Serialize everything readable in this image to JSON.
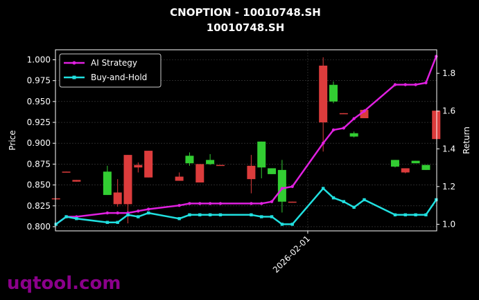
{
  "watermark": "uqtool.com",
  "colors": {
    "background": "#000000",
    "text": "#ffffff",
    "grid": "#444444",
    "up": "#32cd32",
    "down": "#dc3c3c",
    "ai_strategy": "#e020e0",
    "buy_and_hold": "#20e0e0",
    "watermark": "#8b008b"
  },
  "chart_data": {
    "type": "candlestick+line",
    "title": "CNOPTION - 10010748.SH",
    "subtitle": "10010748.SH",
    "ylabel_left": "Price",
    "ylabel_right": "Return",
    "ylim_left": [
      0.795,
      1.012
    ],
    "ylim_right": [
      0.965,
      1.925
    ],
    "yticks_left": [
      "0.800",
      "0.825",
      "0.850",
      "0.875",
      "0.900",
      "0.925",
      "0.950",
      "0.975",
      "1.000"
    ],
    "yticks_right": [
      "1.0",
      "1.2",
      "1.4",
      "1.6",
      "1.8"
    ],
    "x_tick_label": "2026-02-01",
    "x_tick_index": 24.5,
    "grid": true,
    "legend_position": "upper-left",
    "candles": [
      {
        "i": 0,
        "open": 0.834,
        "close": 0.833,
        "high": 0.834,
        "low": 0.833
      },
      {
        "i": 1,
        "open": 0.866,
        "close": 0.865,
        "high": 0.866,
        "low": 0.865
      },
      {
        "i": 2,
        "open": 0.856,
        "close": 0.854,
        "high": 0.856,
        "low": 0.854
      },
      {
        "i": 5,
        "open": 0.838,
        "close": 0.866,
        "high": 0.873,
        "low": 0.838
      },
      {
        "i": 6,
        "open": 0.841,
        "close": 0.827,
        "high": 0.857,
        "low": 0.824
      },
      {
        "i": 7,
        "open": 0.886,
        "close": 0.827,
        "high": 0.886,
        "low": 0.804
      },
      {
        "i": 8,
        "open": 0.874,
        "close": 0.871,
        "high": 0.877,
        "low": 0.865
      },
      {
        "i": 9,
        "open": 0.891,
        "close": 0.859,
        "high": 0.891,
        "low": 0.859
      },
      {
        "i": 12,
        "open": 0.86,
        "close": 0.855,
        "high": 0.865,
        "low": 0.855
      },
      {
        "i": 13,
        "open": 0.876,
        "close": 0.885,
        "high": 0.889,
        "low": 0.873
      },
      {
        "i": 14,
        "open": 0.875,
        "close": 0.853,
        "high": 0.875,
        "low": 0.853
      },
      {
        "i": 15,
        "open": 0.875,
        "close": 0.88,
        "high": 0.887,
        "low": 0.874
      },
      {
        "i": 16,
        "open": 0.874,
        "close": 0.873,
        "high": 0.874,
        "low": 0.873
      },
      {
        "i": 19,
        "open": 0.873,
        "close": 0.857,
        "high": 0.886,
        "low": 0.84
      },
      {
        "i": 20,
        "open": 0.871,
        "close": 0.902,
        "high": 0.902,
        "low": 0.858
      },
      {
        "i": 21,
        "open": 0.863,
        "close": 0.87,
        "high": 0.87,
        "low": 0.863
      },
      {
        "i": 22,
        "open": 0.83,
        "close": 0.868,
        "high": 0.88,
        "low": 0.817
      },
      {
        "i": 23,
        "open": 0.83,
        "close": 0.829,
        "high": 0.83,
        "low": 0.829
      },
      {
        "i": 26,
        "open": 0.993,
        "close": 0.925,
        "high": 1.003,
        "low": 0.89
      },
      {
        "i": 27,
        "open": 0.95,
        "close": 0.97,
        "high": 0.974,
        "low": 0.948
      },
      {
        "i": 28,
        "open": 0.936,
        "close": 0.935,
        "high": 0.936,
        "low": 0.935
      },
      {
        "i": 29,
        "open": 0.908,
        "close": 0.912,
        "high": 0.914,
        "low": 0.907
      },
      {
        "i": 30,
        "open": 0.94,
        "close": 0.93,
        "high": 0.941,
        "low": 0.93
      },
      {
        "i": 33,
        "open": 0.872,
        "close": 0.88,
        "high": 0.88,
        "low": 0.871
      },
      {
        "i": 34,
        "open": 0.87,
        "close": 0.865,
        "high": 0.87,
        "low": 0.864
      },
      {
        "i": 35,
        "open": 0.876,
        "close": 0.879,
        "high": 0.879,
        "low": 0.876
      },
      {
        "i": 36,
        "open": 0.868,
        "close": 0.874,
        "high": 0.874,
        "low": 0.868
      },
      {
        "i": 37,
        "open": 0.939,
        "close": 0.905,
        "high": 0.939,
        "low": 0.905
      }
    ],
    "series": [
      {
        "name": "AI Strategy",
        "points": [
          [
            0,
            1.0
          ],
          [
            1,
            1.04
          ],
          [
            2,
            1.04
          ],
          [
            5,
            1.06
          ],
          [
            6,
            1.06
          ],
          [
            7,
            1.06
          ],
          [
            8,
            1.07
          ],
          [
            9,
            1.08
          ],
          [
            12,
            1.1
          ],
          [
            13,
            1.11
          ],
          [
            14,
            1.11
          ],
          [
            15,
            1.11
          ],
          [
            16,
            1.11
          ],
          [
            19,
            1.11
          ],
          [
            20,
            1.11
          ],
          [
            21,
            1.12
          ],
          [
            22,
            1.19
          ],
          [
            23,
            1.2
          ],
          [
            26,
            1.43
          ],
          [
            27,
            1.5
          ],
          [
            28,
            1.51
          ],
          [
            29,
            1.56
          ],
          [
            30,
            1.6
          ],
          [
            33,
            1.74
          ],
          [
            34,
            1.74
          ],
          [
            35,
            1.74
          ],
          [
            36,
            1.75
          ],
          [
            37,
            1.89
          ]
        ]
      },
      {
        "name": "Buy-and-Hold",
        "points": [
          [
            0,
            1.0
          ],
          [
            1,
            1.04
          ],
          [
            2,
            1.03
          ],
          [
            5,
            1.01
          ],
          [
            6,
            1.01
          ],
          [
            7,
            1.05
          ],
          [
            8,
            1.04
          ],
          [
            9,
            1.06
          ],
          [
            12,
            1.03
          ],
          [
            13,
            1.05
          ],
          [
            14,
            1.05
          ],
          [
            15,
            1.05
          ],
          [
            16,
            1.05
          ],
          [
            19,
            1.05
          ],
          [
            20,
            1.04
          ],
          [
            21,
            1.04
          ],
          [
            22,
            1.0
          ],
          [
            23,
            1.0
          ],
          [
            26,
            1.19
          ],
          [
            27,
            1.14
          ],
          [
            28,
            1.12
          ],
          [
            29,
            1.09
          ],
          [
            30,
            1.13
          ],
          [
            33,
            1.05
          ],
          [
            34,
            1.05
          ],
          [
            35,
            1.05
          ],
          [
            36,
            1.05
          ],
          [
            37,
            1.13
          ]
        ]
      }
    ]
  }
}
